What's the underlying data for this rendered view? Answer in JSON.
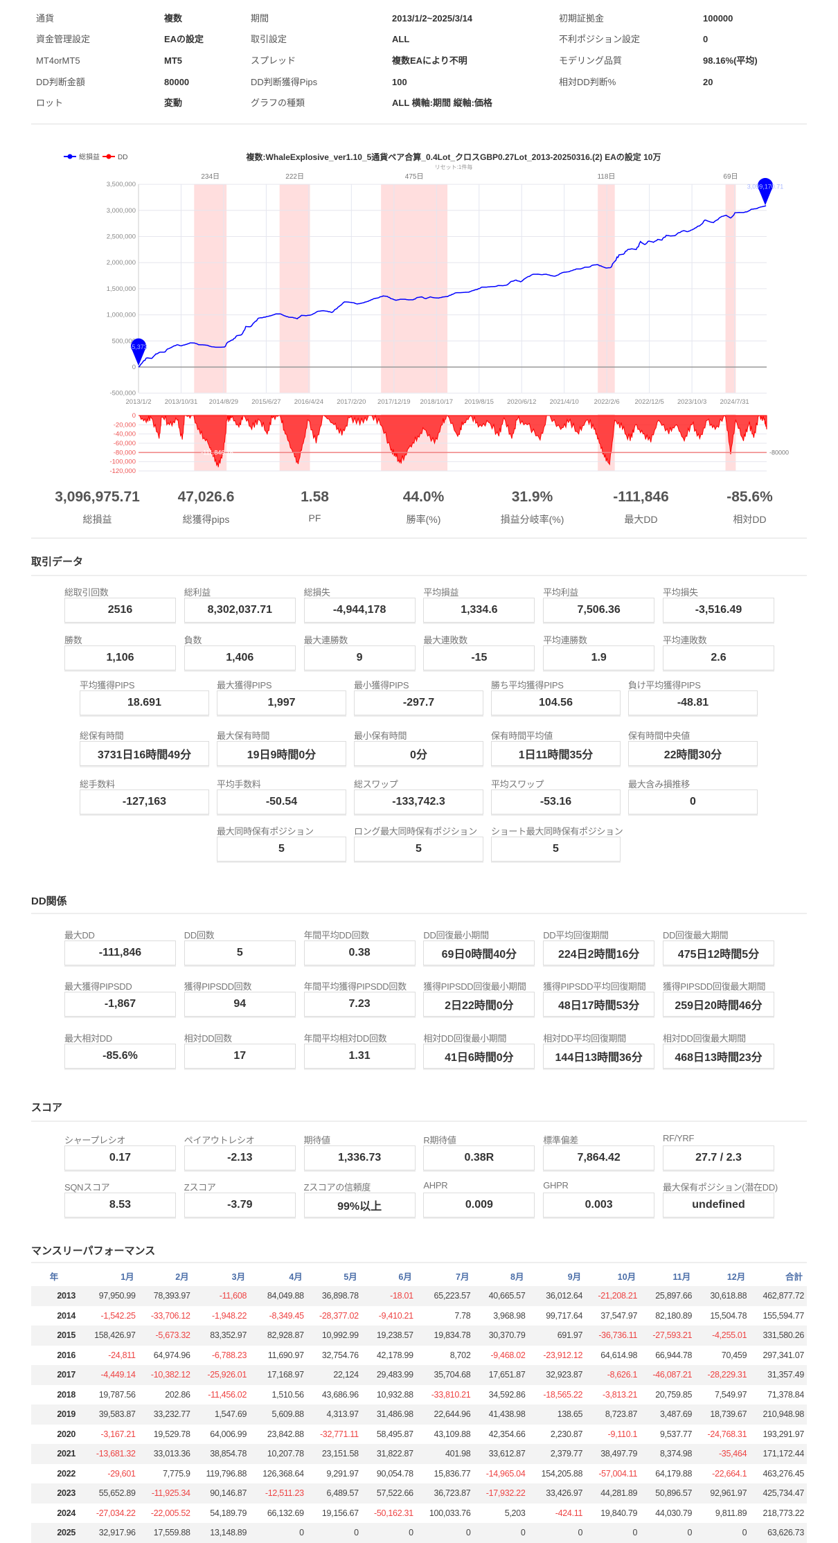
{
  "header": [
    [
      {
        "label": "通貨",
        "value": "複数"
      },
      {
        "label": "期間",
        "value": "2013/1/2~2025/3/14"
      },
      {
        "label": "初期証拠金",
        "value": "100000"
      }
    ],
    [
      {
        "label": "資金管理設定",
        "value": "EAの設定"
      },
      {
        "label": "取引設定",
        "value": "ALL"
      },
      {
        "label": "不利ポジション設定",
        "value": "0"
      }
    ],
    [
      {
        "label": "MT4orMT5",
        "value": "MT5"
      },
      {
        "label": "スプレッド",
        "value": "複数EAにより不明"
      },
      {
        "label": "モデリング品質",
        "value": "98.16%(平均)"
      }
    ],
    [
      {
        "label": "DD判断金額",
        "value": "80000"
      },
      {
        "label": "DD判断獲得Pips",
        "value": "100"
      },
      {
        "label": "相対DD判断%",
        "value": "20"
      }
    ],
    [
      {
        "label": "ロット",
        "value": "変動"
      },
      {
        "label": "グラフの種類",
        "value": "ALL 横軸:期間 縦軸:価格"
      }
    ]
  ],
  "chart_data": {
    "type": "line",
    "title": "複数:WhaleExplosive_ver1.10_5通貨ペア合算_0.4Lot_クロスGBP0.27Lot_2013-20250316.(2) EAの設定 10万",
    "subtitle": "リセット:1件毎",
    "legend": [
      {
        "name": "総損益",
        "color": "#0000ff"
      },
      {
        "name": "DD",
        "color": "#ff0000"
      }
    ],
    "legend_position": "top-left",
    "x_range": [
      2013.0,
      2025.2
    ],
    "x_ticks": [
      "2013/1/2",
      "2013/10/31",
      "2014/8/29",
      "2015/6/27",
      "2016/4/24",
      "2017/2/20",
      "2017/12/19",
      "2018/10/17",
      "2019/8/15",
      "2020/6/12",
      "2021/4/10",
      "2022/2/6",
      "2022/12/5",
      "2023/10/3",
      "2024/7/31"
    ],
    "y_ticks": [
      "3,500,000",
      "3,000,000",
      "2,500,000",
      "2,000,000",
      "1,500,000",
      "1,000,000",
      "500,000",
      "0",
      "-500,000"
    ],
    "ylim": [
      -500000,
      3500000
    ],
    "dd_ticks": [
      "0",
      "-20,000",
      "-40,000",
      "-60,000",
      "-80,000",
      "-100,000",
      "-120,000"
    ],
    "dd_ylim": [
      -120000,
      0
    ],
    "dd_threshold": -80000,
    "dd_threshold_label": "-80000",
    "start_marker": "-5,373",
    "end_marker": "3,099,170.71",
    "max_dd_marker": "-111,846.16",
    "dd_periods": [
      {
        "label": "234日",
        "start": 2014.08,
        "end": 2014.71
      },
      {
        "label": "222日",
        "start": 2015.74,
        "end": 2016.33
      },
      {
        "label": "475日",
        "start": 2017.71,
        "end": 2019.0
      },
      {
        "label": "118日",
        "start": 2021.92,
        "end": 2022.25
      },
      {
        "label": "69日",
        "start": 2024.4,
        "end": 2024.6
      }
    ],
    "equity_series_note": "cumulative of monthly.rows",
    "dd_series": [
      [
        2013.0,
        0
      ],
      [
        2013.15,
        -15000
      ],
      [
        2013.25,
        -5000
      ],
      [
        2013.4,
        -50000
      ],
      [
        2013.45,
        -3000
      ],
      [
        2013.6,
        -20000
      ],
      [
        2013.75,
        -10000
      ],
      [
        2013.85,
        -52000
      ],
      [
        2013.9,
        0
      ],
      [
        2014.05,
        0
      ],
      [
        2014.2,
        -40000
      ],
      [
        2014.35,
        -60000
      ],
      [
        2014.45,
        -90000
      ],
      [
        2014.55,
        -111846
      ],
      [
        2014.65,
        -80000
      ],
      [
        2014.72,
        -10000
      ],
      [
        2014.8,
        -5000
      ],
      [
        2014.95,
        -25000
      ],
      [
        2015.05,
        0
      ],
      [
        2015.2,
        -30000
      ],
      [
        2015.35,
        -10000
      ],
      [
        2015.5,
        -40000
      ],
      [
        2015.6,
        -5000
      ],
      [
        2015.75,
        0
      ],
      [
        2015.85,
        -40000
      ],
      [
        2016.0,
        -80000
      ],
      [
        2016.1,
        -105000
      ],
      [
        2016.2,
        -60000
      ],
      [
        2016.3,
        -10000
      ],
      [
        2016.45,
        -60000
      ],
      [
        2016.6,
        0
      ],
      [
        2016.8,
        -20000
      ],
      [
        2016.95,
        -43000
      ],
      [
        2017.1,
        -5000
      ],
      [
        2017.3,
        -20000
      ],
      [
        2017.5,
        0
      ],
      [
        2017.7,
        -20000
      ],
      [
        2017.9,
        -75000
      ],
      [
        2018.0,
        -90000
      ],
      [
        2018.1,
        -104000
      ],
      [
        2018.25,
        -70000
      ],
      [
        2018.4,
        -55000
      ],
      [
        2018.55,
        -30000
      ],
      [
        2018.75,
        -60000
      ],
      [
        2018.9,
        -20000
      ],
      [
        2019.0,
        0
      ],
      [
        2019.2,
        -45000
      ],
      [
        2019.3,
        -20000
      ],
      [
        2019.45,
        0
      ],
      [
        2019.6,
        -25000
      ],
      [
        2019.8,
        -15000
      ],
      [
        2020.0,
        -45000
      ],
      [
        2020.1,
        -5000
      ],
      [
        2020.25,
        -50000
      ],
      [
        2020.35,
        -10000
      ],
      [
        2020.55,
        -20000
      ],
      [
        2020.8,
        -53000
      ],
      [
        2020.95,
        0
      ],
      [
        2021.2,
        -30000
      ],
      [
        2021.35,
        -15000
      ],
      [
        2021.55,
        -40000
      ],
      [
        2021.7,
        -10000
      ],
      [
        2021.85,
        -30000
      ],
      [
        2021.95,
        -60000
      ],
      [
        2022.05,
        -90000
      ],
      [
        2022.15,
        -106000
      ],
      [
        2022.25,
        -10000
      ],
      [
        2022.4,
        -30000
      ],
      [
        2022.55,
        -55000
      ],
      [
        2022.65,
        -20000
      ],
      [
        2022.8,
        -40000
      ],
      [
        2022.95,
        -58000
      ],
      [
        2023.1,
        -10000
      ],
      [
        2023.3,
        -40000
      ],
      [
        2023.45,
        -20000
      ],
      [
        2023.6,
        -55000
      ],
      [
        2023.75,
        -20000
      ],
      [
        2023.9,
        -50000
      ],
      [
        2024.05,
        -10000
      ],
      [
        2024.2,
        -30000
      ],
      [
        2024.4,
        -2000
      ],
      [
        2024.5,
        -84000
      ],
      [
        2024.6,
        -10000
      ],
      [
        2024.75,
        -55000
      ],
      [
        2024.85,
        -20000
      ],
      [
        2024.95,
        -48000
      ],
      [
        2025.05,
        0
      ],
      [
        2025.15,
        -10000
      ],
      [
        2025.2,
        -30000
      ]
    ]
  },
  "summary": [
    {
      "value": "3,096,975.71",
      "label": "総損益"
    },
    {
      "value": "47,026.6",
      "label": "総獲得pips"
    },
    {
      "value": "1.58",
      "label": "PF"
    },
    {
      "value": "44.0%",
      "label": "勝率(%)"
    },
    {
      "value": "31.9%",
      "label": "損益分岐率(%)"
    },
    {
      "value": "-111,846",
      "label": "最大DD"
    },
    {
      "value": "-85.6%",
      "label": "相対DD"
    }
  ],
  "trade": {
    "title": "取引データ",
    "rows6": [
      [
        [
          "総取引回数",
          "2516"
        ],
        [
          "総利益",
          "8,302,037.71"
        ],
        [
          "総損失",
          "-4,944,178"
        ],
        [
          "平均損益",
          "1,334.6"
        ],
        [
          "平均利益",
          "7,506.36"
        ],
        [
          "平均損失",
          "-3,516.49"
        ]
      ],
      [
        [
          "勝数",
          "1,106"
        ],
        [
          "負数",
          "1,406"
        ],
        [
          "最大連勝数",
          "9"
        ],
        [
          "最大連敗数",
          "-15"
        ],
        [
          "平均連勝数",
          "1.9"
        ],
        [
          "平均連敗数",
          "2.6"
        ]
      ]
    ],
    "rows5": [
      [
        [
          "平均獲得PIPS",
          "18.691"
        ],
        [
          "最大獲得PIPS",
          "1,997"
        ],
        [
          "最小獲得PIPS",
          "-297.7"
        ],
        [
          "勝ち平均獲得PIPS",
          "104.56"
        ],
        [
          "負け平均獲得PIPS",
          "-48.81"
        ]
      ],
      [
        [
          "総保有時間",
          "3731日16時間49分"
        ],
        [
          "最大保有時間",
          "19日9時間0分"
        ],
        [
          "最小保有時間",
          "0分"
        ],
        [
          "保有時間平均値",
          "1日11時間35分"
        ],
        [
          "保有時間中央値",
          "22時間30分"
        ]
      ],
      [
        [
          "総手数料",
          "-127,163"
        ],
        [
          "平均手数料",
          "-50.54"
        ],
        [
          "総スワップ",
          "-133,742.3"
        ],
        [
          "平均スワップ",
          "-53.16"
        ],
        [
          "最大含み損推移",
          "0"
        ]
      ]
    ],
    "rows3": [
      [
        "最大同時保有ポジション",
        "5"
      ],
      [
        "ロング最大同時保有ポジション",
        "5"
      ],
      [
        "ショート最大同時保有ポジション",
        "5"
      ]
    ]
  },
  "dd": {
    "title": "DD関係",
    "rows": [
      [
        [
          "最大DD",
          "-111,846"
        ],
        [
          "DD回数",
          "5"
        ],
        [
          "年間平均DD回数",
          "0.38"
        ],
        [
          "DD回復最小期間",
          "69日0時間40分"
        ],
        [
          "DD平均回復期間",
          "224日2時間16分"
        ],
        [
          "DD回復最大期間",
          "475日12時間5分"
        ]
      ],
      [
        [
          "最大獲得PIPSDD",
          "-1,867"
        ],
        [
          "獲得PIPSDD回数",
          "94"
        ],
        [
          "年間平均獲得PIPSDD回数",
          "7.23"
        ],
        [
          "獲得PIPSDD回復最小期間",
          "2日22時間0分"
        ],
        [
          "獲得PIPSDD平均回復期間",
          "48日17時間53分"
        ],
        [
          "獲得PIPSDD回復最大期間",
          "259日20時間46分"
        ]
      ],
      [
        [
          "最大相対DD",
          "-85.6%"
        ],
        [
          "相対DD回数",
          "17"
        ],
        [
          "年間平均相対DD回数",
          "1.31"
        ],
        [
          "相対DD回復最小期間",
          "41日6時間0分"
        ],
        [
          "相対DD平均回復期間",
          "144日13時間36分"
        ],
        [
          "相対DD回復最大期間",
          "468日13時間23分"
        ]
      ]
    ]
  },
  "score": {
    "title": "スコア",
    "rows": [
      [
        [
          "シャープレシオ",
          "0.17"
        ],
        [
          "ペイアウトレシオ",
          "-2.13"
        ],
        [
          "期待値",
          "1,336.73"
        ],
        [
          "R期待値",
          "0.38R"
        ],
        [
          "標準偏差",
          "7,864.42"
        ],
        [
          "RF/YRF",
          "27.7 / 2.3"
        ]
      ],
      [
        [
          "SQNスコア",
          "8.53"
        ],
        [
          "Zスコア",
          "-3.79"
        ],
        [
          "Zスコアの信頼度",
          "99%以上"
        ],
        [
          "AHPR",
          "0.009"
        ],
        [
          "GHPR",
          "0.003"
        ],
        [
          "最大保有ポジション(潜在DD)",
          "undefined"
        ]
      ]
    ]
  },
  "monthly": {
    "title": "マンスリーパフォーマンス",
    "headers": [
      "年",
      "1月",
      "2月",
      "3月",
      "4月",
      "5月",
      "6月",
      "7月",
      "8月",
      "9月",
      "10月",
      "11月",
      "12月",
      "合計"
    ],
    "rows": [
      [
        "2013",
        "97,950.99",
        "78,393.97",
        "-11,608",
        "84,049.88",
        "36,898.78",
        "-18.01",
        "65,223.57",
        "40,665.57",
        "36,012.64",
        "-21,208.21",
        "25,897.66",
        "30,618.88",
        "462,877.72"
      ],
      [
        "2014",
        "-1,542.25",
        "-33,706.12",
        "-1,948.22",
        "-8,349.45",
        "-28,377.02",
        "-9,410.21",
        "7.78",
        "3,968.98",
        "99,717.64",
        "37,547.97",
        "82,180.89",
        "15,504.78",
        "155,594.77"
      ],
      [
        "2015",
        "158,426.97",
        "-5,673.32",
        "83,352.97",
        "82,928.87",
        "10,992.99",
        "19,238.57",
        "19,834.78",
        "30,370.79",
        "691.97",
        "-36,736.11",
        "-27,593.21",
        "-4,255.01",
        "331,580.26"
      ],
      [
        "2016",
        "-24,811",
        "64,974.96",
        "-6,788.23",
        "11,690.97",
        "32,754.76",
        "42,178.99",
        "8,702",
        "-9,468.02",
        "-23,912.12",
        "64,614.98",
        "66,944.78",
        "70,459",
        "297,341.07"
      ],
      [
        "2017",
        "-4,449.14",
        "-10,382.12",
        "-25,926.01",
        "17,168.97",
        "22,124",
        "29,483.99",
        "35,704.68",
        "17,651.87",
        "32,923.87",
        "-8,626.1",
        "-46,087.21",
        "-28,229.31",
        "31,357.49"
      ],
      [
        "2018",
        "19,787.56",
        "202.86",
        "-11,456.02",
        "1,510.56",
        "43,686.96",
        "10,932.88",
        "-33,810.21",
        "34,592.86",
        "-18,565.22",
        "-3,813.21",
        "20,759.85",
        "7,549.97",
        "71,378.84"
      ],
      [
        "2019",
        "39,583.87",
        "33,232.77",
        "1,547.69",
        "5,609.88",
        "4,313.97",
        "31,486.98",
        "22,644.96",
        "41,438.98",
        "138.65",
        "8,723.87",
        "3,487.69",
        "18,739.67",
        "210,948.98"
      ],
      [
        "2020",
        "-3,167.21",
        "19,529.78",
        "64,006.99",
        "23,842.88",
        "-32,771.11",
        "58,495.87",
        "43,109.88",
        "42,354.66",
        "2,230.87",
        "-9,110.1",
        "9,537.77",
        "-24,768.31",
        "193,291.97"
      ],
      [
        "2021",
        "-13,681.32",
        "33,013.36",
        "38,854.78",
        "10,207.78",
        "23,151.58",
        "31,822.87",
        "401.98",
        "33,612.87",
        "2,379.77",
        "38,497.79",
        "8,374.98",
        "-35,464",
        "171,172.44"
      ],
      [
        "2022",
        "-29,601",
        "7,775.9",
        "119,796.88",
        "126,368.64",
        "9,291.97",
        "90,054.78",
        "15,836.77",
        "-14,965.04",
        "154,205.88",
        "-57,004.11",
        "64,179.88",
        "-22,664.1",
        "463,276.45"
      ],
      [
        "2023",
        "55,652.89",
        "-11,925.34",
        "90,146.87",
        "-12,511.23",
        "6,489.57",
        "57,522.66",
        "36,723.87",
        "-17,932.22",
        "33,426.97",
        "44,281.89",
        "50,896.57",
        "92,961.97",
        "425,734.47"
      ],
      [
        "2024",
        "-27,034.22",
        "-22,005.52",
        "54,189.79",
        "66,132.69",
        "19,156.67",
        "-50,162.31",
        "100,033.76",
        "5,203",
        "-424.11",
        "19,840.79",
        "44,030.79",
        "9,811.89",
        "218,773.22"
      ],
      [
        "2025",
        "32,917.96",
        "17,559.88",
        "13,148.89",
        "0",
        "0",
        "0",
        "0",
        "0",
        "0",
        "0",
        "0",
        "0",
        "63,626.73"
      ]
    ]
  },
  "colors": {
    "equity": "#0000ff",
    "dd": "#ff0000",
    "dd_period": "#ffdede",
    "negative": "#ee4444",
    "header_blue": "#4b6ea8"
  }
}
